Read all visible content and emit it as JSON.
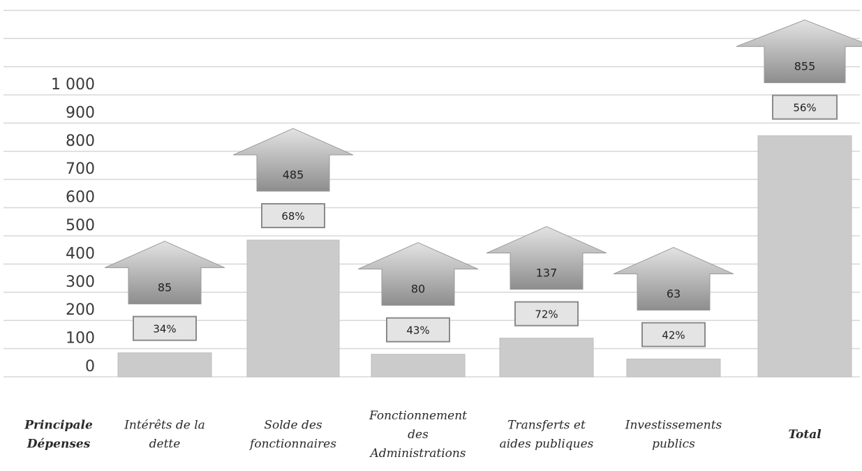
{
  "chart_data": {
    "type": "bar",
    "title": "",
    "xlabel": "",
    "ylabel": "",
    "ylim": [
      0,
      1000
    ],
    "y_ticks": [
      "0",
      "100",
      "200",
      "300",
      "400",
      "500",
      "600",
      "700",
      "800",
      "900",
      "1 000"
    ],
    "grid": true,
    "axis_header": [
      "Principale",
      "Dépenses"
    ],
    "categories": [
      {
        "lines": [
          "Intérêts de la",
          "dette"
        ],
        "bold": false
      },
      {
        "lines": [
          "Solde des",
          "fonctionnaires"
        ],
        "bold": false
      },
      {
        "lines": [
          "Fonctionnement",
          "des",
          "Administrations"
        ],
        "bold": false
      },
      {
        "lines": [
          "Transferts et",
          "aides publiques"
        ],
        "bold": false
      },
      {
        "lines": [
          "Investissements",
          "publics"
        ],
        "bold": false
      },
      {
        "lines": [
          "Total"
        ],
        "bold": true
      }
    ],
    "values": [
      85,
      485,
      80,
      137,
      63,
      855
    ],
    "value_labels": [
      "85",
      "485",
      "80",
      "137",
      "63",
      "855"
    ],
    "percent_labels": [
      "34%",
      "68%",
      "43%",
      "72%",
      "42%",
      "56%"
    ],
    "colors": {
      "bar": "#cbcbcb",
      "arrow_top": "#e3e3e3",
      "arrow_bottom": "#8d8d8d",
      "grid": "#d9d9d9"
    }
  }
}
